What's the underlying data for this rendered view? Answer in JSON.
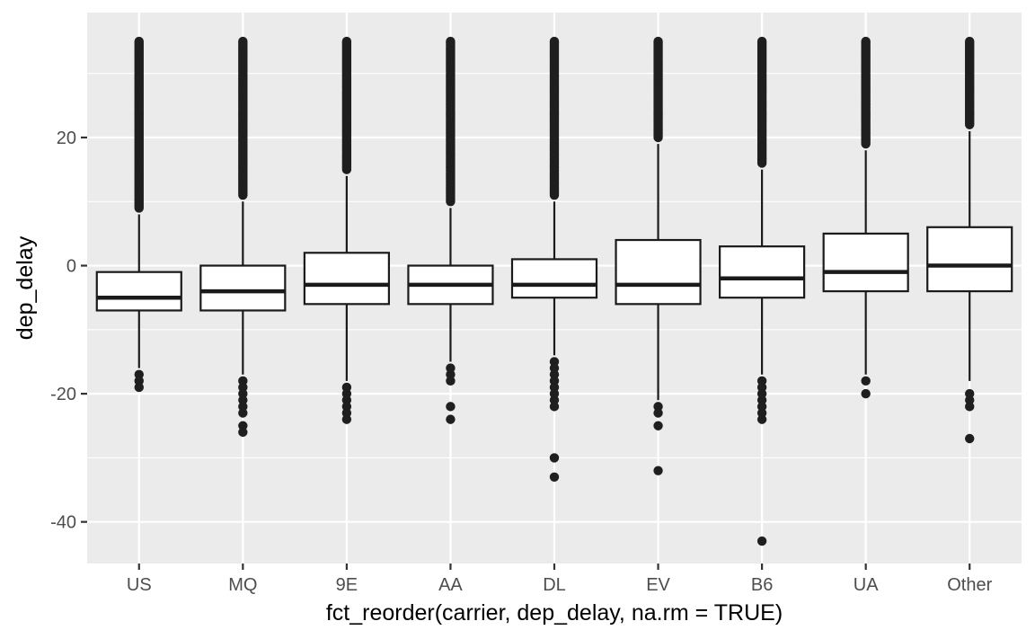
{
  "chart_data": {
    "type": "boxplot",
    "title": "",
    "xlabel": "fct_reorder(carrier, dep_delay, na.rm = TRUE)",
    "ylabel": "dep_delay",
    "ylim": [
      -46.5,
      39.5
    ],
    "yticks": [
      -40,
      -20,
      0,
      20
    ],
    "grid": true,
    "colors": {
      "panel": "#ebebeb",
      "grid": "#ffffff",
      "box_fill": "#ffffff",
      "stroke": "#1a1a1a",
      "outlier": "#1f1f1f"
    },
    "categories": [
      "US",
      "MQ",
      "9E",
      "AA",
      "DL",
      "EV",
      "B6",
      "UA",
      "Other"
    ],
    "boxes": [
      {
        "q1": -7,
        "median": -5,
        "q3": -1,
        "whisker_low": -16,
        "whisker_high": 8,
        "outliers_low": [
          -17,
          -18,
          -19
        ],
        "outliers_high_range": [
          9,
          35
        ]
      },
      {
        "q1": -7,
        "median": -4,
        "q3": 0,
        "whisker_low": -17,
        "whisker_high": 10,
        "outliers_low": [
          -18,
          -19,
          -20,
          -21,
          -22,
          -23,
          -25,
          -26
        ],
        "outliers_high_range": [
          11,
          35
        ]
      },
      {
        "q1": -6,
        "median": -3,
        "q3": 2,
        "whisker_low": -18,
        "whisker_high": 14,
        "outliers_low": [
          -19,
          -20,
          -21,
          -22,
          -23,
          -24
        ],
        "outliers_high_range": [
          15,
          35
        ]
      },
      {
        "q1": -6,
        "median": -3,
        "q3": 0,
        "whisker_low": -15,
        "whisker_high": 9,
        "outliers_low": [
          -16,
          -17,
          -18,
          -22,
          -24
        ],
        "outliers_high_range": [
          10,
          35
        ]
      },
      {
        "q1": -5,
        "median": -3,
        "q3": 1,
        "whisker_low": -14,
        "whisker_high": 10,
        "outliers_low": [
          -15,
          -16,
          -17,
          -18,
          -19,
          -20,
          -21,
          -22,
          -30,
          -33
        ],
        "outliers_high_range": [
          11,
          35
        ]
      },
      {
        "q1": -6,
        "median": -3,
        "q3": 4,
        "whisker_low": -21,
        "whisker_high": 19,
        "outliers_low": [
          -22,
          -23,
          -25,
          -32
        ],
        "outliers_high_range": [
          20,
          35
        ]
      },
      {
        "q1": -5,
        "median": -2,
        "q3": 3,
        "whisker_low": -17,
        "whisker_high": 15,
        "outliers_low": [
          -18,
          -19,
          -20,
          -21,
          -22,
          -23,
          -24,
          -43
        ],
        "outliers_high_range": [
          16,
          35
        ]
      },
      {
        "q1": -4,
        "median": -1,
        "q3": 5,
        "whisker_low": -17,
        "whisker_high": 18,
        "outliers_low": [
          -18,
          -20
        ],
        "outliers_high_range": [
          19,
          35
        ]
      },
      {
        "q1": -4,
        "median": 0,
        "q3": 6,
        "whisker_low": -18,
        "whisker_high": 21,
        "outliers_low": [
          -20,
          -21,
          -22,
          -27
        ],
        "outliers_high_range": [
          22,
          35
        ]
      }
    ]
  }
}
